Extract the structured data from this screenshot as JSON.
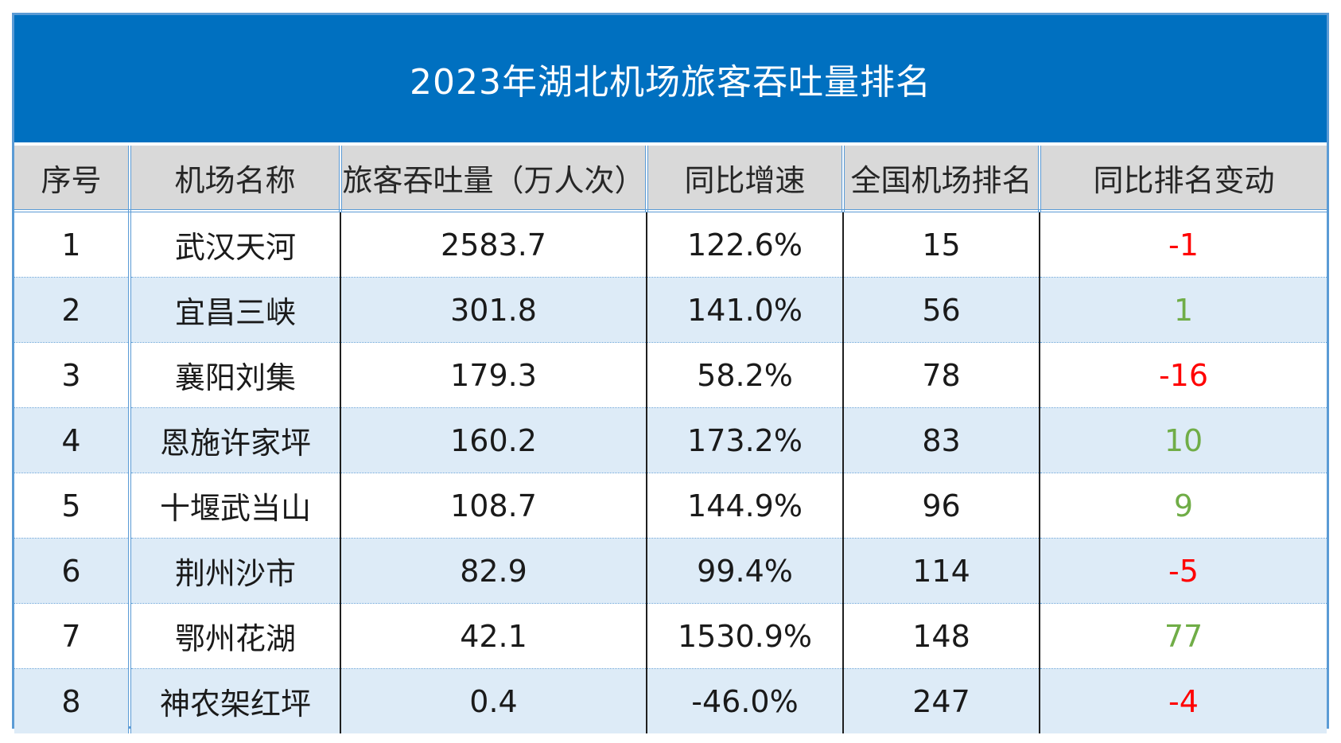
{
  "title": "2023年湖北机场旅客吞吐量排名",
  "colors": {
    "title_bg": "#0070c0",
    "header_bg": "#d9d9d9",
    "alt_row_bg": "#ddebf7",
    "border": "#5b9bd5",
    "negative_change": "#ff0000",
    "positive_change": "#70ad47"
  },
  "table": {
    "headers": [
      "序号",
      "机场名称",
      "旅客吞吐量（万人次）",
      "同比增速",
      "全国机场排名",
      "同比排名变动"
    ],
    "rows": [
      {
        "no": "1",
        "airport": "武汉天河",
        "throughput": "2583.7",
        "growth": "122.6%",
        "national_rank": "15",
        "rank_change": "-1",
        "change_sign": "neg"
      },
      {
        "no": "2",
        "airport": "宜昌三峡",
        "throughput": "301.8",
        "growth": "141.0%",
        "national_rank": "56",
        "rank_change": "1",
        "change_sign": "pos"
      },
      {
        "no": "3",
        "airport": "襄阳刘集",
        "throughput": "179.3",
        "growth": "58.2%",
        "national_rank": "78",
        "rank_change": "-16",
        "change_sign": "neg"
      },
      {
        "no": "4",
        "airport": "恩施许家坪",
        "throughput": "160.2",
        "growth": "173.2%",
        "national_rank": "83",
        "rank_change": "10",
        "change_sign": "pos"
      },
      {
        "no": "5",
        "airport": "十堰武当山",
        "throughput": "108.7",
        "growth": "144.9%",
        "national_rank": "96",
        "rank_change": "9",
        "change_sign": "pos"
      },
      {
        "no": "6",
        "airport": "荆州沙市",
        "throughput": "82.9",
        "growth": "99.4%",
        "national_rank": "114",
        "rank_change": "-5",
        "change_sign": "neg"
      },
      {
        "no": "7",
        "airport": "鄂州花湖",
        "throughput": "42.1",
        "growth": "1530.9%",
        "national_rank": "148",
        "rank_change": "77",
        "change_sign": "pos"
      },
      {
        "no": "8",
        "airport": "神农架红坪",
        "throughput": "0.4",
        "growth": "-46.0%",
        "national_rank": "247",
        "rank_change": "-4",
        "change_sign": "neg"
      }
    ]
  }
}
